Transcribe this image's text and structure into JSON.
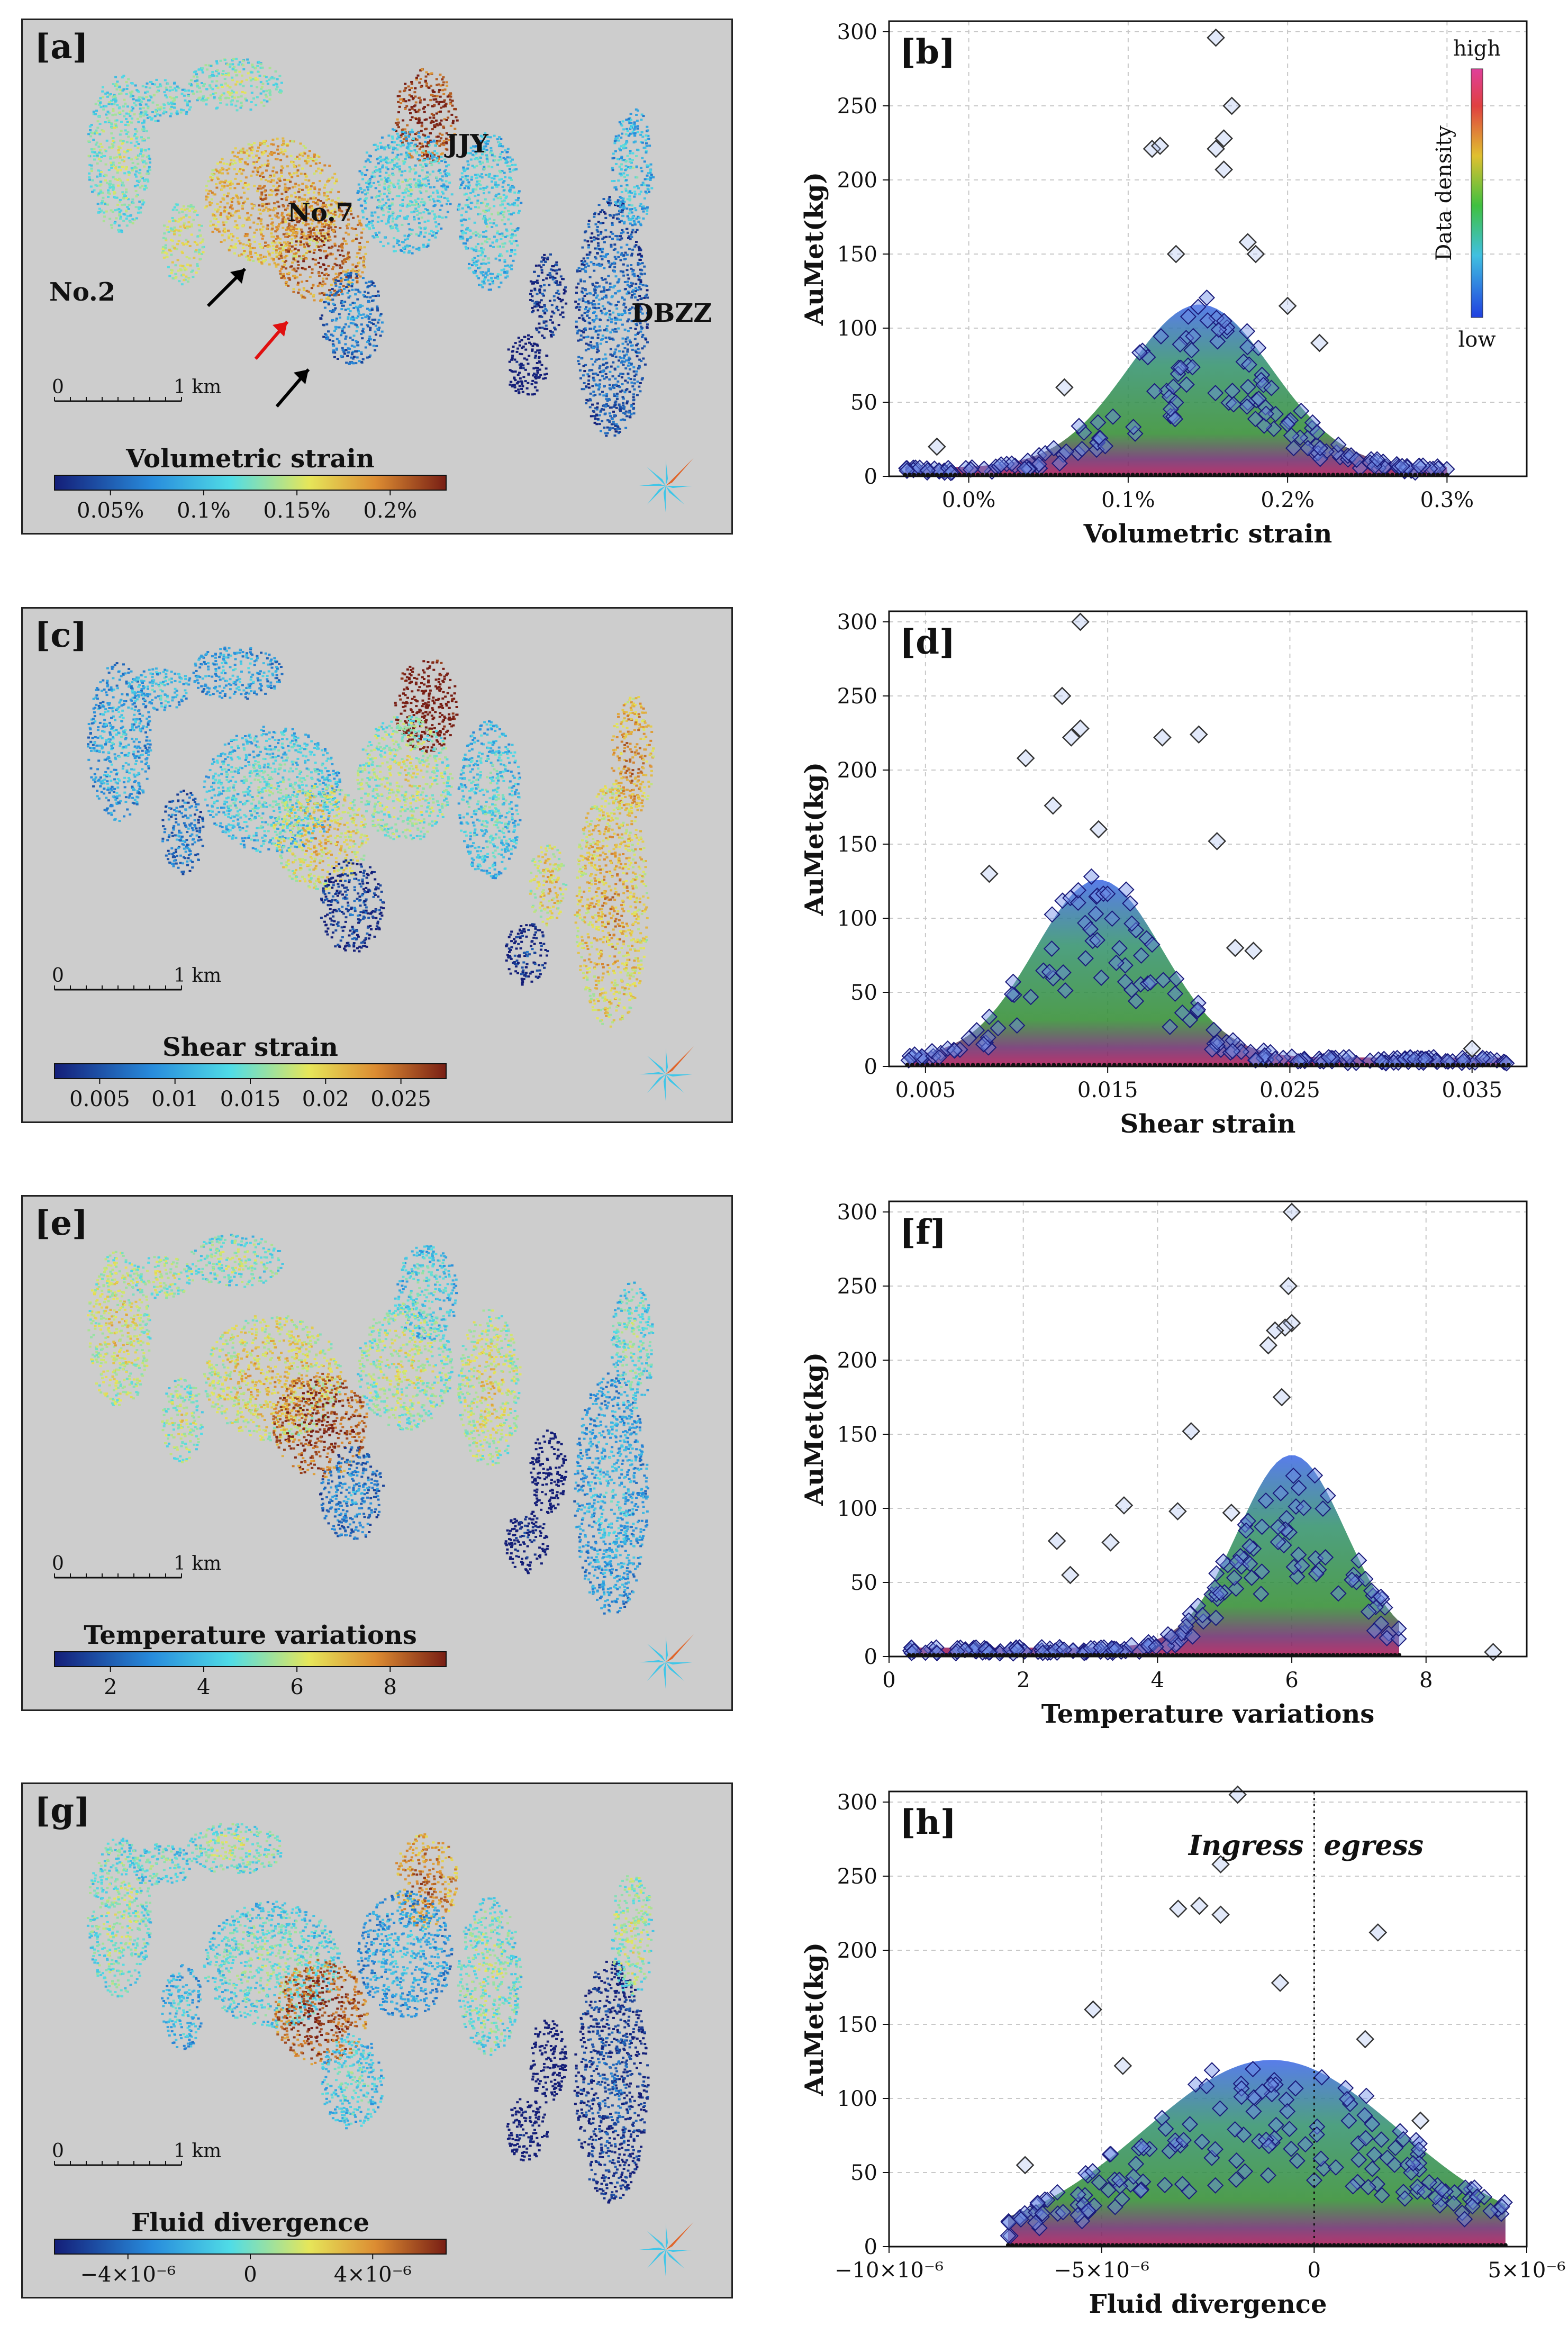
{
  "figure": {
    "colors": {
      "map_bg": "#cdcdcd",
      "marker": "#000080",
      "density_low": "#2f6fe0",
      "density_mid": "#2e8b2e",
      "density_high": "#800040"
    }
  },
  "maps": [
    {
      "id": "a",
      "tag": "[a]",
      "title": "Volumetric strain",
      "ticks": [
        "0.05%",
        "0.1%",
        "0.15%",
        "0.2%"
      ],
      "scale": {
        "start": "0",
        "end": "1 km"
      },
      "annotations": [
        "No.7",
        "JJY",
        "No.2",
        "DBZZ"
      ]
    },
    {
      "id": "c",
      "tag": "[c]",
      "title": "Shear strain",
      "ticks": [
        "0.005",
        "0.01",
        "0.015",
        "0.02",
        "0.025"
      ],
      "scale": {
        "start": "0",
        "end": "1 km"
      },
      "annotations": []
    },
    {
      "id": "e",
      "tag": "[e]",
      "title": "Temperature variations",
      "ticks": [
        "2",
        "4",
        "6",
        "8"
      ],
      "scale": {
        "start": "0",
        "end": "1 km"
      },
      "annotations": []
    },
    {
      "id": "g",
      "tag": "[g]",
      "title": "Fluid divergence",
      "ticks": [
        "−4×10⁻⁶",
        "0",
        "4×10⁻⁶"
      ],
      "scale": {
        "start": "0",
        "end": "1 km"
      },
      "annotations": []
    }
  ],
  "density_legend": {
    "high": "high",
    "low": "low",
    "title": "Data density"
  },
  "chart_data": [
    {
      "id": "b",
      "tag": "[b]",
      "type": "scatter",
      "xlabel": "Volumetric strain",
      "ylabel": "AuMet(kg)",
      "xlim": [
        -0.05,
        0.35
      ],
      "ylim": [
        0,
        300
      ],
      "xticks": [
        {
          "v": 0.0,
          "t": "0.0%"
        },
        {
          "v": 0.1,
          "t": "0.1%"
        },
        {
          "v": 0.2,
          "t": "0.2%"
        },
        {
          "v": 0.3,
          "t": "0.3%"
        }
      ],
      "yticks": [
        0,
        50,
        100,
        150,
        200,
        250,
        300
      ],
      "density": {
        "center": 0.145,
        "sigma": 0.045,
        "peak": 110,
        "xmin": -0.04,
        "xmax": 0.3
      },
      "outliers": [
        [
          0.155,
          296
        ],
        [
          0.165,
          250
        ],
        [
          0.16,
          228
        ],
        [
          0.155,
          221
        ],
        [
          0.115,
          221
        ],
        [
          0.12,
          223
        ],
        [
          0.16,
          207
        ],
        [
          0.13,
          150
        ],
        [
          0.175,
          158
        ],
        [
          0.18,
          150
        ],
        [
          0.2,
          115
        ],
        [
          0.06,
          60
        ],
        [
          0.22,
          90
        ],
        [
          -0.02,
          20
        ]
      ],
      "annotations": []
    },
    {
      "id": "d",
      "tag": "[d]",
      "type": "scatter",
      "xlabel": "Shear strain",
      "ylabel": "AuMet(kg)",
      "xlim": [
        0.003,
        0.038
      ],
      "ylim": [
        0,
        300
      ],
      "xticks": [
        {
          "v": 0.005,
          "t": "0.005"
        },
        {
          "v": 0.015,
          "t": "0.015"
        },
        {
          "v": 0.025,
          "t": "0.025"
        },
        {
          "v": 0.035,
          "t": "0.035"
        }
      ],
      "yticks": [
        0,
        50,
        100,
        150,
        200,
        250,
        300
      ],
      "density": {
        "center": 0.0145,
        "sigma": 0.0035,
        "peak": 120,
        "xmin": 0.004,
        "xmax": 0.037
      },
      "outliers": [
        [
          0.0135,
          300
        ],
        [
          0.0125,
          250
        ],
        [
          0.0135,
          228
        ],
        [
          0.013,
          222
        ],
        [
          0.018,
          222
        ],
        [
          0.02,
          224
        ],
        [
          0.0105,
          208
        ],
        [
          0.012,
          176
        ],
        [
          0.0145,
          160
        ],
        [
          0.021,
          152
        ],
        [
          0.0085,
          130
        ],
        [
          0.022,
          80
        ],
        [
          0.023,
          78
        ],
        [
          0.035,
          12
        ]
      ],
      "annotations": []
    },
    {
      "id": "f",
      "tag": "[f]",
      "type": "scatter",
      "xlabel": "Temperature  variations",
      "ylabel": "AuMet(kg)",
      "xlim": [
        0,
        9.5
      ],
      "ylim": [
        0,
        300
      ],
      "xticks": [
        {
          "v": 0,
          "t": "0"
        },
        {
          "v": 2,
          "t": "2"
        },
        {
          "v": 4,
          "t": "4"
        },
        {
          "v": 6,
          "t": "6"
        },
        {
          "v": 8,
          "t": "8"
        }
      ],
      "yticks": [
        0,
        50,
        100,
        150,
        200,
        250,
        300
      ],
      "density": {
        "center": 6.0,
        "sigma": 0.8,
        "peak": 130,
        "xmin": 0.3,
        "xmax": 7.6
      },
      "outliers": [
        [
          6.0,
          300
        ],
        [
          5.95,
          250
        ],
        [
          6.0,
          225
        ],
        [
          5.9,
          222
        ],
        [
          5.75,
          220
        ],
        [
          5.65,
          210
        ],
        [
          5.85,
          175
        ],
        [
          4.5,
          152
        ],
        [
          3.5,
          102
        ],
        [
          4.3,
          98
        ],
        [
          5.1,
          97
        ],
        [
          2.5,
          78
        ],
        [
          3.3,
          77
        ],
        [
          2.7,
          55
        ],
        [
          9.0,
          3
        ]
      ],
      "annotations": []
    },
    {
      "id": "h",
      "tag": "[h]",
      "type": "scatter",
      "xlabel": "Fluid divergence",
      "ylabel": "AuMet(kg)",
      "xlim": [
        -1e-05,
        5e-06
      ],
      "ylim": [
        0,
        300
      ],
      "xticks": [
        {
          "v": -1e-05,
          "t": "−10×10⁻⁶"
        },
        {
          "v": -5e-06,
          "t": "−5×10⁻⁶"
        },
        {
          "v": 0,
          "t": "0"
        },
        {
          "v": 5e-06,
          "t": "5×10⁻⁶"
        }
      ],
      "yticks": [
        0,
        50,
        100,
        150,
        200,
        250,
        300
      ],
      "density": {
        "center": -1e-06,
        "sigma": 3e-06,
        "peak": 120,
        "xmin": -7.2e-06,
        "xmax": 4.5e-06
      },
      "outliers": [
        [
          -1.8e-06,
          305
        ],
        [
          -2.2e-06,
          258
        ],
        [
          -3.2e-06,
          228
        ],
        [
          -2.7e-06,
          230
        ],
        [
          -2.2e-06,
          224
        ],
        [
          1.5e-06,
          212
        ],
        [
          -8e-07,
          178
        ],
        [
          -5.2e-06,
          160
        ],
        [
          -6.8e-06,
          55
        ],
        [
          1.2e-06,
          140
        ],
        [
          -4.5e-06,
          122
        ],
        [
          2.5e-06,
          85
        ]
      ],
      "annotations": [
        {
          "id": "ingress",
          "text": "Ingress"
        },
        {
          "id": "egress",
          "text": "egress"
        }
      ]
    }
  ]
}
